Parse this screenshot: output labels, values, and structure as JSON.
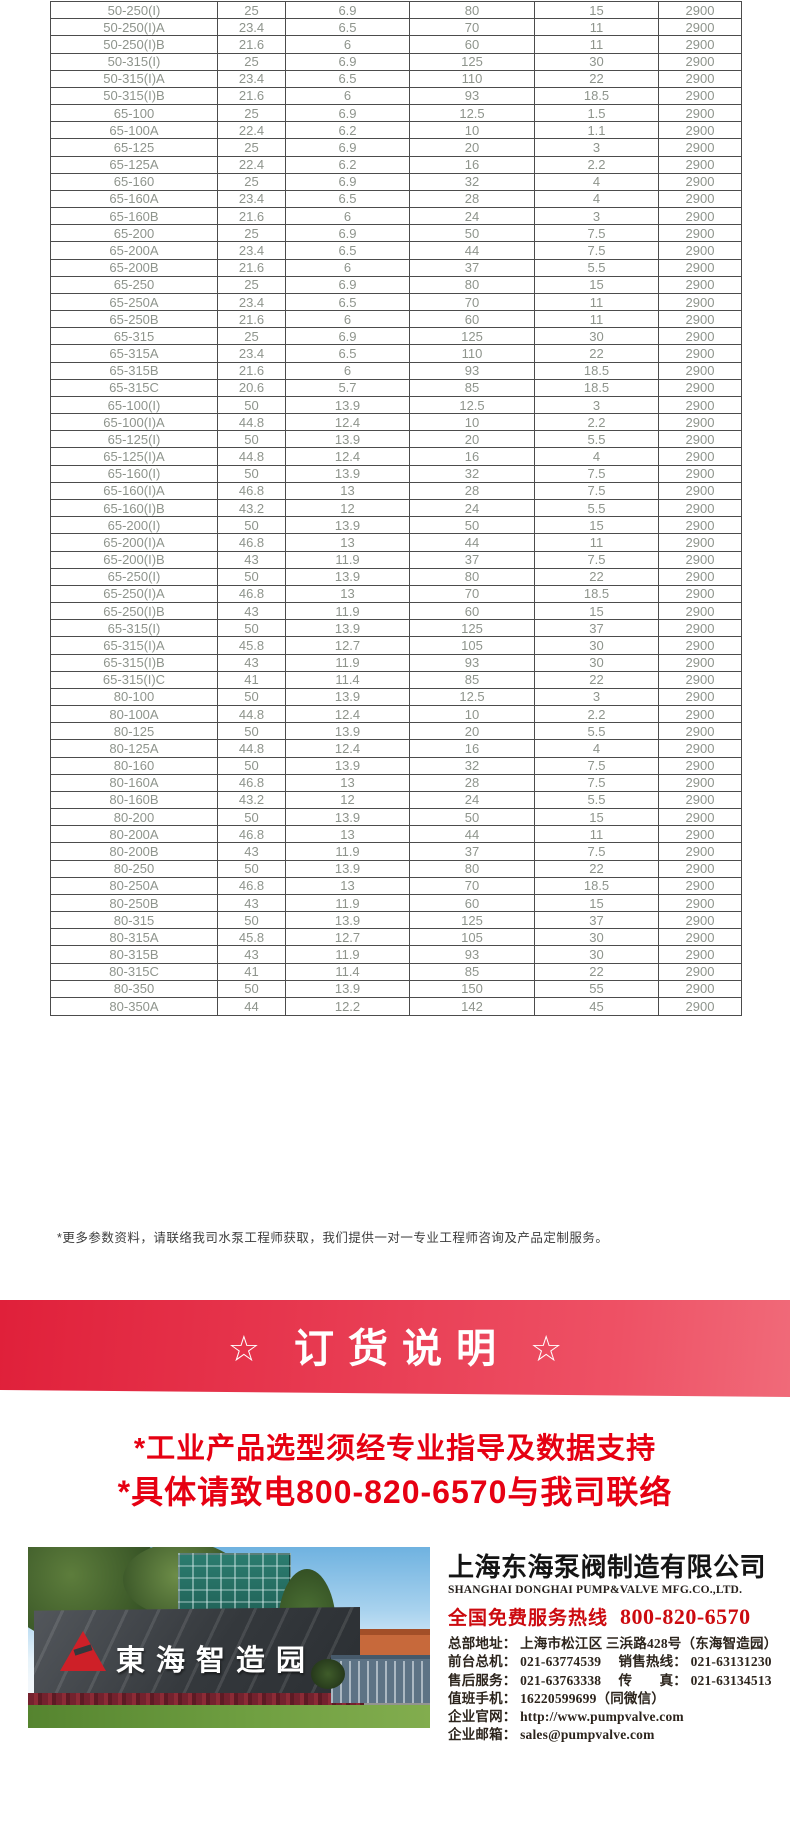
{
  "table": {
    "rows": [
      [
        "50-250(I)",
        "25",
        "6.9",
        "80",
        "15",
        "2900"
      ],
      [
        "50-250(I)A",
        "23.4",
        "6.5",
        "70",
        "11",
        "2900"
      ],
      [
        "50-250(I)B",
        "21.6",
        "6",
        "60",
        "11",
        "2900"
      ],
      [
        "50-315(I)",
        "25",
        "6.9",
        "125",
        "30",
        "2900"
      ],
      [
        "50-315(I)A",
        "23.4",
        "6.5",
        "110",
        "22",
        "2900"
      ],
      [
        "50-315(I)B",
        "21.6",
        "6",
        "93",
        "18.5",
        "2900"
      ],
      [
        "65-100",
        "25",
        "6.9",
        "12.5",
        "1.5",
        "2900"
      ],
      [
        "65-100A",
        "22.4",
        "6.2",
        "10",
        "1.1",
        "2900"
      ],
      [
        "65-125",
        "25",
        "6.9",
        "20",
        "3",
        "2900"
      ],
      [
        "65-125A",
        "22.4",
        "6.2",
        "16",
        "2.2",
        "2900"
      ],
      [
        "65-160",
        "25",
        "6.9",
        "32",
        "4",
        "2900"
      ],
      [
        "65-160A",
        "23.4",
        "6.5",
        "28",
        "4",
        "2900"
      ],
      [
        "65-160B",
        "21.6",
        "6",
        "24",
        "3",
        "2900"
      ],
      [
        "65-200",
        "25",
        "6.9",
        "50",
        "7.5",
        "2900"
      ],
      [
        "65-200A",
        "23.4",
        "6.5",
        "44",
        "7.5",
        "2900"
      ],
      [
        "65-200B",
        "21.6",
        "6",
        "37",
        "5.5",
        "2900"
      ],
      [
        "65-250",
        "25",
        "6.9",
        "80",
        "15",
        "2900"
      ],
      [
        "65-250A",
        "23.4",
        "6.5",
        "70",
        "11",
        "2900"
      ],
      [
        "65-250B",
        "21.6",
        "6",
        "60",
        "11",
        "2900"
      ],
      [
        "65-315",
        "25",
        "6.9",
        "125",
        "30",
        "2900"
      ],
      [
        "65-315A",
        "23.4",
        "6.5",
        "110",
        "22",
        "2900"
      ],
      [
        "65-315B",
        "21.6",
        "6",
        "93",
        "18.5",
        "2900"
      ],
      [
        "65-315C",
        "20.6",
        "5.7",
        "85",
        "18.5",
        "2900"
      ],
      [
        "65-100(I)",
        "50",
        "13.9",
        "12.5",
        "3",
        "2900"
      ],
      [
        "65-100(I)A",
        "44.8",
        "12.4",
        "10",
        "2.2",
        "2900"
      ],
      [
        "65-125(I)",
        "50",
        "13.9",
        "20",
        "5.5",
        "2900"
      ],
      [
        "65-125(I)A",
        "44.8",
        "12.4",
        "16",
        "4",
        "2900"
      ],
      [
        "65-160(I)",
        "50",
        "13.9",
        "32",
        "7.5",
        "2900"
      ],
      [
        "65-160(I)A",
        "46.8",
        "13",
        "28",
        "7.5",
        "2900"
      ],
      [
        "65-160(I)B",
        "43.2",
        "12",
        "24",
        "5.5",
        "2900"
      ],
      [
        "65-200(I)",
        "50",
        "13.9",
        "50",
        "15",
        "2900"
      ],
      [
        "65-200(I)A",
        "46.8",
        "13",
        "44",
        "11",
        "2900"
      ],
      [
        "65-200(I)B",
        "43",
        "11.9",
        "37",
        "7.5",
        "2900"
      ],
      [
        "65-250(I)",
        "50",
        "13.9",
        "80",
        "22",
        "2900"
      ],
      [
        "65-250(I)A",
        "46.8",
        "13",
        "70",
        "18.5",
        "2900"
      ],
      [
        "65-250(I)B",
        "43",
        "11.9",
        "60",
        "15",
        "2900"
      ],
      [
        "65-315(I)",
        "50",
        "13.9",
        "125",
        "37",
        "2900"
      ],
      [
        "65-315(I)A",
        "45.8",
        "12.7",
        "105",
        "30",
        "2900"
      ],
      [
        "65-315(I)B",
        "43",
        "11.9",
        "93",
        "30",
        "2900"
      ],
      [
        "65-315(I)C",
        "41",
        "11.4",
        "85",
        "22",
        "2900"
      ],
      [
        "80-100",
        "50",
        "13.9",
        "12.5",
        "3",
        "2900"
      ],
      [
        "80-100A",
        "44.8",
        "12.4",
        "10",
        "2.2",
        "2900"
      ],
      [
        "80-125",
        "50",
        "13.9",
        "20",
        "5.5",
        "2900"
      ],
      [
        "80-125A",
        "44.8",
        "12.4",
        "16",
        "4",
        "2900"
      ],
      [
        "80-160",
        "50",
        "13.9",
        "32",
        "7.5",
        "2900"
      ],
      [
        "80-160A",
        "46.8",
        "13",
        "28",
        "7.5",
        "2900"
      ],
      [
        "80-160B",
        "43.2",
        "12",
        "24",
        "5.5",
        "2900"
      ],
      [
        "80-200",
        "50",
        "13.9",
        "50",
        "15",
        "2900"
      ],
      [
        "80-200A",
        "46.8",
        "13",
        "44",
        "11",
        "2900"
      ],
      [
        "80-200B",
        "43",
        "11.9",
        "37",
        "7.5",
        "2900"
      ],
      [
        "80-250",
        "50",
        "13.9",
        "80",
        "22",
        "2900"
      ],
      [
        "80-250A",
        "46.8",
        "13",
        "70",
        "18.5",
        "2900"
      ],
      [
        "80-250B",
        "43",
        "11.9",
        "60",
        "15",
        "2900"
      ],
      [
        "80-315",
        "50",
        "13.9",
        "125",
        "37",
        "2900"
      ],
      [
        "80-315A",
        "45.8",
        "12.7",
        "105",
        "30",
        "2900"
      ],
      [
        "80-315B",
        "43",
        "11.9",
        "93",
        "30",
        "2900"
      ],
      [
        "80-315C",
        "41",
        "11.4",
        "85",
        "22",
        "2900"
      ],
      [
        "80-350",
        "50",
        "13.9",
        "150",
        "55",
        "2900"
      ],
      [
        "80-350A",
        "44",
        "12.2",
        "142",
        "45",
        "2900"
      ]
    ]
  },
  "note": "*更多参数资料，请联络我司水泵工程师获取，我们提供一对一专业工程师咨询及产品定制服务。",
  "banner": {
    "star": "☆",
    "title": "订货说明",
    "bg_left": "#e0203a",
    "bg_right": "#f06a79"
  },
  "notice": {
    "line1": "*工业产品选型须经专业指导及数据支持",
    "line2": "*具体请致电800-820-6570与我司联络",
    "color": "#e60012"
  },
  "footer": {
    "photo_sign": "東海智造园",
    "company_cn": "上海东海泵阀制造有限公司",
    "company_en": "SHANGHAI DONGHAI PUMP&VALVE MFG.CO.,LTD.",
    "hotline_label": "全国免费服务热线",
    "hotline_number": "800-820-6570",
    "hotline_color": "#cc0a0f",
    "contact_lines": [
      {
        "text": "总部地址： 上海市松江区 三浜路428号（东海智造园）",
        "clickable": false
      },
      {
        "text": "前台总机： 021-63774539　 销售热线： 021-63131230",
        "clickable": false
      },
      {
        "text": "售后服务： 021-63763338　 传　　真： 021-63134513",
        "clickable": false
      },
      {
        "text": "值班手机： 16220599699（同微信）",
        "clickable": false
      },
      {
        "text": "企业官网： http://www.pumpvalve.com",
        "clickable": true
      },
      {
        "text": "企业邮箱： sales@pumpvalve.com",
        "clickable": true
      }
    ]
  }
}
